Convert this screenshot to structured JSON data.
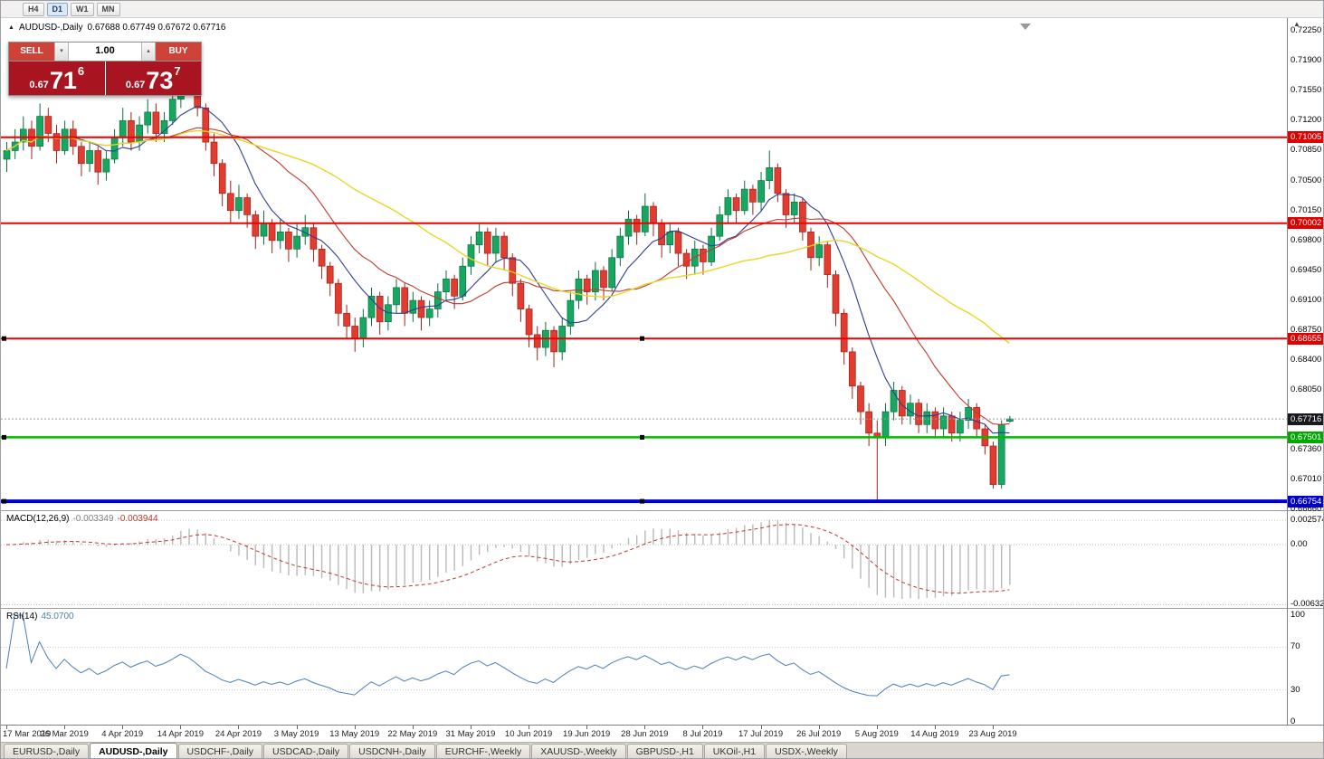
{
  "toolbar": {
    "timeframes": [
      {
        "label": "H4",
        "active": false
      },
      {
        "label": "D1",
        "active": true
      },
      {
        "label": "W1",
        "active": false
      },
      {
        "label": "MN",
        "active": false
      }
    ]
  },
  "chart": {
    "title": "AUDUSD-,Daily",
    "ohlc": "0.67688 0.67749 0.67672 0.67716"
  },
  "trade_panel": {
    "sell_label": "SELL",
    "buy_label": "BUY",
    "volume": "1.00",
    "sell_price": {
      "prefix": "0.67",
      "big": "71",
      "sup": "6"
    },
    "buy_price": {
      "prefix": "0.67",
      "big": "73",
      "sup": "7"
    },
    "button_color": "#cf4238",
    "display_color": "#a8141f"
  },
  "chart_data": {
    "type": "candlestick",
    "title": "AUDUSD Daily candlestick chart with 3 moving averages, horizontal support/resistance lines, MACD(12,26,9) and RSI(14)",
    "symbol": "AUDUSD",
    "timeframe": "Daily",
    "current_price": 0.67716,
    "colors": {
      "up": "#16a860",
      "up_border": "#0b6e3d",
      "down": "#e23b30",
      "down_border": "#9e221a",
      "background": "#ffffff"
    },
    "y_axis": {
      "max": 0.7225,
      "min": 0.6666,
      "ticks": [
        "0.72250",
        "0.71900",
        "0.71550",
        "0.71200",
        "0.70850",
        "0.70500",
        "0.70150",
        "0.69800",
        "0.69450",
        "0.69100",
        "0.68750",
        "0.68400",
        "0.68050",
        "0.67360",
        "0.67010",
        "0.66660"
      ]
    },
    "price_tags": [
      {
        "price": 0.71005,
        "label": "0.71005",
        "color": "#e00000",
        "name": "resistance-price-tag-1"
      },
      {
        "price": 0.70002,
        "label": "0.70002",
        "color": "#e00000",
        "name": "resistance-price-tag-2"
      },
      {
        "price": 0.68655,
        "label": "0.68655",
        "color": "#e00000",
        "name": "resistance-price-tag-3"
      },
      {
        "price": 0.67501,
        "label": "0.67501",
        "color": "#00a800",
        "name": "support-price-tag-green"
      },
      {
        "price": 0.66754,
        "label": "0.66754",
        "color": "#0000cc",
        "name": "support-price-tag-blue"
      },
      {
        "price": 0.67716,
        "label": "0.67716",
        "color": "#17191d",
        "name": "current-price-tag"
      }
    ],
    "hlines": [
      {
        "price": 0.71005,
        "color": "#ee0000",
        "width": 2,
        "handle": false
      },
      {
        "price": 0.70002,
        "color": "#ee0000",
        "width": 2,
        "handle": false
      },
      {
        "price": 0.68655,
        "color": "#ee0000",
        "width": 2,
        "handle": true
      },
      {
        "price": 0.67501,
        "color": "#00bb00",
        "width": 2.5,
        "handle": true
      },
      {
        "price": 0.66754,
        "color": "#0000cc",
        "width": 4,
        "handle": true
      }
    ],
    "moving_averages": [
      {
        "period": 8,
        "color": "#2c3e94",
        "width": 1.1
      },
      {
        "period": 17,
        "color": "#c0392b",
        "width": 1.1
      },
      {
        "period": 34,
        "color": "#e8d626",
        "width": 1.4
      }
    ],
    "macd": {
      "name": "MACD(12,26,9)",
      "value_main": "-0.003349",
      "value_signal": "-0.003944",
      "fast": 12,
      "slow": 26,
      "signal_period": 9,
      "histogram_color": "#b9b9b9",
      "signal_color": "#c0392b",
      "scale_labels": [
        "0.002574",
        "0.00",
        "-0.006326"
      ]
    },
    "rsi": {
      "name": "RSI(14)",
      "value": "45.0700",
      "period": 14,
      "color": "#4a7ebb",
      "levels": [
        100,
        70,
        30,
        0
      ]
    },
    "x_labels": [
      {
        "i": 0,
        "label": "17 Mar 2019"
      },
      {
        "i": 7,
        "label": "26 Mar 2019"
      },
      {
        "i": 14,
        "label": "4 Apr 2019"
      },
      {
        "i": 21,
        "label": "14 Apr 2019"
      },
      {
        "i": 28,
        "label": "24 Apr 2019"
      },
      {
        "i": 35,
        "label": "3 May 2019"
      },
      {
        "i": 42,
        "label": "13 May 2019"
      },
      {
        "i": 49,
        "label": "22 May 2019"
      },
      {
        "i": 56,
        "label": "31 May 2019"
      },
      {
        "i": 63,
        "label": "10 Jun 2019"
      },
      {
        "i": 70,
        "label": "19 Jun 2019"
      },
      {
        "i": 77,
        "label": "28 Jun 2019"
      },
      {
        "i": 84,
        "label": "8 Jul 2019"
      },
      {
        "i": 91,
        "label": "17 Jul 2019"
      },
      {
        "i": 98,
        "label": "26 Jul 2019"
      },
      {
        "i": 105,
        "label": "5 Aug 2019"
      },
      {
        "i": 112,
        "label": "14 Aug 2019"
      },
      {
        "i": 119,
        "label": "23 Aug 2019"
      }
    ],
    "candles": [
      [
        0.7075,
        0.7095,
        0.706,
        0.7085
      ],
      [
        0.7085,
        0.711,
        0.7075,
        0.7095
      ],
      [
        0.7095,
        0.7125,
        0.7085,
        0.711
      ],
      [
        0.711,
        0.712,
        0.7075,
        0.709
      ],
      [
        0.709,
        0.714,
        0.7085,
        0.7125
      ],
      [
        0.7125,
        0.7135,
        0.7095,
        0.7105
      ],
      [
        0.7105,
        0.7115,
        0.707,
        0.7085
      ],
      [
        0.7085,
        0.712,
        0.708,
        0.711
      ],
      [
        0.711,
        0.712,
        0.708,
        0.709
      ],
      [
        0.709,
        0.7095,
        0.7055,
        0.707
      ],
      [
        0.707,
        0.7095,
        0.706,
        0.7085
      ],
      [
        0.7085,
        0.709,
        0.7045,
        0.706
      ],
      [
        0.706,
        0.7085,
        0.705,
        0.7075
      ],
      [
        0.7075,
        0.711,
        0.707,
        0.71
      ],
      [
        0.71,
        0.7135,
        0.709,
        0.712
      ],
      [
        0.712,
        0.713,
        0.7085,
        0.7095
      ],
      [
        0.7095,
        0.7125,
        0.7085,
        0.7115
      ],
      [
        0.7115,
        0.7145,
        0.7105,
        0.713
      ],
      [
        0.713,
        0.714,
        0.7095,
        0.7105
      ],
      [
        0.7105,
        0.713,
        0.7095,
        0.712
      ],
      [
        0.712,
        0.7155,
        0.7115,
        0.7145
      ],
      [
        0.7145,
        0.719,
        0.7135,
        0.718
      ],
      [
        0.718,
        0.72,
        0.7155,
        0.7165
      ],
      [
        0.7165,
        0.717,
        0.7125,
        0.7135
      ],
      [
        0.7135,
        0.714,
        0.7085,
        0.7095
      ],
      [
        0.7095,
        0.7105,
        0.7055,
        0.707
      ],
      [
        0.707,
        0.7075,
        0.702,
        0.7035
      ],
      [
        0.7035,
        0.705,
        0.7,
        0.7015
      ],
      [
        0.7015,
        0.7045,
        0.7005,
        0.703
      ],
      [
        0.703,
        0.7035,
        0.6995,
        0.701
      ],
      [
        0.701,
        0.7015,
        0.697,
        0.6985
      ],
      [
        0.6985,
        0.7015,
        0.6975,
        0.7
      ],
      [
        0.7,
        0.7005,
        0.6965,
        0.698
      ],
      [
        0.698,
        0.7005,
        0.697,
        0.699
      ],
      [
        0.699,
        0.6995,
        0.6955,
        0.697
      ],
      [
        0.697,
        0.7,
        0.696,
        0.6985
      ],
      [
        0.6985,
        0.701,
        0.6975,
        0.6995
      ],
      [
        0.6995,
        0.7,
        0.6955,
        0.697
      ],
      [
        0.697,
        0.6975,
        0.6935,
        0.695
      ],
      [
        0.695,
        0.6955,
        0.6915,
        0.693
      ],
      [
        0.693,
        0.6935,
        0.688,
        0.6895
      ],
      [
        0.6895,
        0.6905,
        0.6865,
        0.688
      ],
      [
        0.688,
        0.689,
        0.685,
        0.6865
      ],
      [
        0.6865,
        0.69,
        0.6855,
        0.689
      ],
      [
        0.689,
        0.6925,
        0.688,
        0.6915
      ],
      [
        0.6915,
        0.692,
        0.687,
        0.6885
      ],
      [
        0.6885,
        0.6915,
        0.6875,
        0.6905
      ],
      [
        0.6905,
        0.6935,
        0.6895,
        0.6925
      ],
      [
        0.6925,
        0.693,
        0.688,
        0.6895
      ],
      [
        0.6895,
        0.692,
        0.6885,
        0.691
      ],
      [
        0.691,
        0.6915,
        0.6875,
        0.689
      ],
      [
        0.689,
        0.691,
        0.688,
        0.69
      ],
      [
        0.69,
        0.693,
        0.689,
        0.692
      ],
      [
        0.692,
        0.6945,
        0.691,
        0.6935
      ],
      [
        0.6935,
        0.694,
        0.69,
        0.6915
      ],
      [
        0.6915,
        0.696,
        0.691,
        0.695
      ],
      [
        0.695,
        0.6985,
        0.694,
        0.6975
      ],
      [
        0.6975,
        0.7,
        0.6965,
        0.699
      ],
      [
        0.699,
        0.6995,
        0.695,
        0.6965
      ],
      [
        0.6965,
        0.6995,
        0.6955,
        0.6985
      ],
      [
        0.6985,
        0.699,
        0.6945,
        0.696
      ],
      [
        0.696,
        0.6965,
        0.6915,
        0.693
      ],
      [
        0.693,
        0.6935,
        0.6885,
        0.69
      ],
      [
        0.69,
        0.6905,
        0.6855,
        0.687
      ],
      [
        0.687,
        0.688,
        0.684,
        0.6855
      ],
      [
        0.6855,
        0.6885,
        0.6845,
        0.6875
      ],
      [
        0.6875,
        0.688,
        0.6832,
        0.685
      ],
      [
        0.685,
        0.689,
        0.684,
        0.688
      ],
      [
        0.688,
        0.692,
        0.687,
        0.691
      ],
      [
        0.691,
        0.6945,
        0.69,
        0.6935
      ],
      [
        0.6935,
        0.694,
        0.6905,
        0.692
      ],
      [
        0.692,
        0.6955,
        0.691,
        0.6945
      ],
      [
        0.6945,
        0.695,
        0.691,
        0.6925
      ],
      [
        0.6925,
        0.697,
        0.692,
        0.696
      ],
      [
        0.696,
        0.6995,
        0.695,
        0.6985
      ],
      [
        0.6985,
        0.7015,
        0.6975,
        0.7005
      ],
      [
        0.7005,
        0.701,
        0.6975,
        0.699
      ],
      [
        0.699,
        0.7035,
        0.6985,
        0.702
      ],
      [
        0.702,
        0.7025,
        0.6985,
        0.7
      ],
      [
        0.7,
        0.7005,
        0.696,
        0.6975
      ],
      [
        0.6975,
        0.7,
        0.6965,
        0.699
      ],
      [
        0.699,
        0.6995,
        0.695,
        0.6965
      ],
      [
        0.6965,
        0.697,
        0.6935,
        0.695
      ],
      [
        0.695,
        0.698,
        0.694,
        0.697
      ],
      [
        0.697,
        0.6975,
        0.694,
        0.6955
      ],
      [
        0.6955,
        0.6995,
        0.695,
        0.6985
      ],
      [
        0.6985,
        0.702,
        0.698,
        0.701
      ],
      [
        0.701,
        0.704,
        0.7,
        0.703
      ],
      [
        0.703,
        0.7035,
        0.7,
        0.7015
      ],
      [
        0.7015,
        0.705,
        0.701,
        0.704
      ],
      [
        0.704,
        0.7045,
        0.701,
        0.7025
      ],
      [
        0.7025,
        0.706,
        0.7015,
        0.705
      ],
      [
        0.705,
        0.7085,
        0.704,
        0.7065
      ],
      [
        0.7065,
        0.707,
        0.7025,
        0.7035
      ],
      [
        0.7035,
        0.704,
        0.6995,
        0.701
      ],
      [
        0.701,
        0.7035,
        0.7,
        0.7025
      ],
      [
        0.7025,
        0.703,
        0.698,
        0.699
      ],
      [
        0.699,
        0.6995,
        0.6945,
        0.696
      ],
      [
        0.696,
        0.6985,
        0.695,
        0.6975
      ],
      [
        0.6975,
        0.698,
        0.6925,
        0.694
      ],
      [
        0.694,
        0.6945,
        0.688,
        0.6895
      ],
      [
        0.6895,
        0.69,
        0.6835,
        0.685
      ],
      [
        0.685,
        0.6855,
        0.6795,
        0.681
      ],
      [
        0.681,
        0.6815,
        0.6765,
        0.678
      ],
      [
        0.678,
        0.679,
        0.674,
        0.6755
      ],
      [
        0.6755,
        0.677,
        0.6676,
        0.675
      ],
      [
        0.675,
        0.679,
        0.674,
        0.678
      ],
      [
        0.678,
        0.6815,
        0.677,
        0.6805
      ],
      [
        0.6805,
        0.681,
        0.6765,
        0.6775
      ],
      [
        0.6775,
        0.68,
        0.6765,
        0.679
      ],
      [
        0.679,
        0.6795,
        0.6755,
        0.6765
      ],
      [
        0.6765,
        0.679,
        0.6755,
        0.678
      ],
      [
        0.678,
        0.6785,
        0.675,
        0.676
      ],
      [
        0.676,
        0.6785,
        0.675,
        0.6775
      ],
      [
        0.6775,
        0.678,
        0.6745,
        0.6755
      ],
      [
        0.6755,
        0.678,
        0.6745,
        0.677
      ],
      [
        0.677,
        0.6795,
        0.676,
        0.6785
      ],
      [
        0.6785,
        0.679,
        0.675,
        0.676
      ],
      [
        0.676,
        0.6765,
        0.673,
        0.674
      ],
      [
        0.674,
        0.6745,
        0.669,
        0.6695
      ],
      [
        0.6695,
        0.677,
        0.669,
        0.6765
      ],
      [
        0.67688,
        0.67749,
        0.67672,
        0.67716
      ]
    ]
  },
  "tabs": [
    {
      "label": "EURUSD-,Daily",
      "active": false
    },
    {
      "label": "AUDUSD-,Daily",
      "active": true
    },
    {
      "label": "USDCHF-,Daily",
      "active": false
    },
    {
      "label": "USDCAD-,Daily",
      "active": false
    },
    {
      "label": "USDCNH-,Daily",
      "active": false
    },
    {
      "label": "EURCHF-,Weekly",
      "active": false
    },
    {
      "label": "XAUUSD-,Weekly",
      "active": false
    },
    {
      "label": "GBPUSD-,H1",
      "active": false
    },
    {
      "label": "UKOil-,H1",
      "active": false
    },
    {
      "label": "USDX-,Weekly",
      "active": false
    }
  ]
}
